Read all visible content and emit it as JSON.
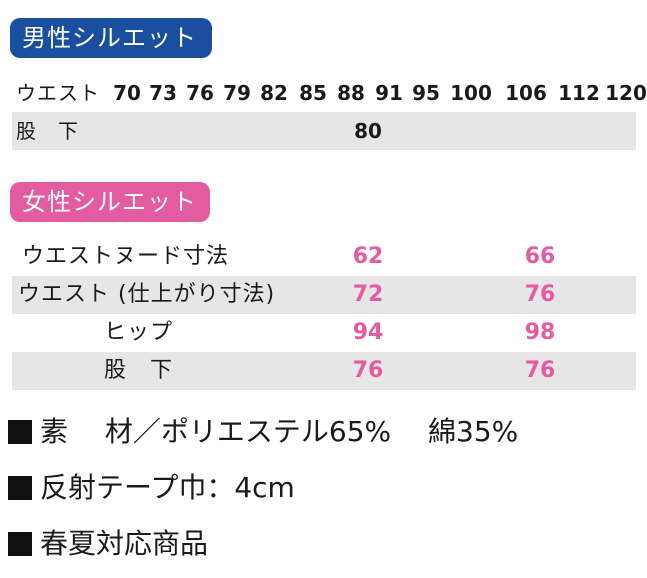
{
  "men": {
    "title": "男性シルエット",
    "waist_label": "ウエスト",
    "sizes": [
      "70",
      "73",
      "76",
      "79",
      "82",
      "85",
      "88",
      "91",
      "95",
      "100",
      "106",
      "112",
      "120"
    ],
    "inseam_label": "股　下",
    "inseam_value": "80"
  },
  "women": {
    "title": "女性シルエット",
    "rows": [
      {
        "label": "ウエストヌード寸法",
        "v1": "62",
        "v2": "66"
      },
      {
        "label": "ウエスト (仕上がり寸法)",
        "v1": "72",
        "v2": "76"
      },
      {
        "label": "ヒップ",
        "v1": "94",
        "v2": "98"
      },
      {
        "label": "股　下",
        "v1": "76",
        "v2": "76"
      }
    ]
  },
  "notes": [
    "素　 材／ポリエステル65%　 綿35%",
    "反射テープ巾：4cm",
    "春夏対応商品"
  ],
  "colors": {
    "men_badge": "#1a4fa0",
    "women_badge": "#e35ba1",
    "row_grey": "#e6e6e6"
  }
}
